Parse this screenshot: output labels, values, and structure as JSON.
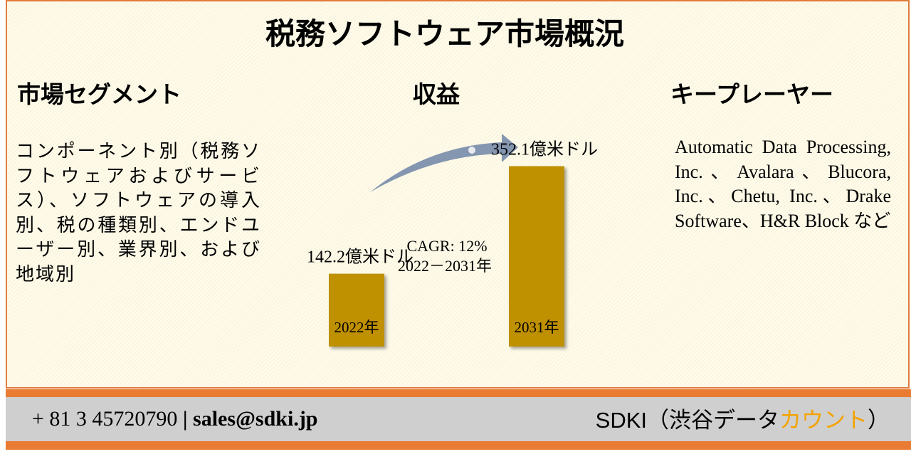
{
  "title": "税務ソフトウェア市場概況",
  "segments": {
    "heading": "市場セグメント",
    "text": "コンポーネント別（税務ソフトウェアおよびサービス）、ソフトウェアの導入別、税の種類別、エンドユーザー別、業界別、および地域別"
  },
  "revenue": {
    "heading": "収益",
    "categories": [
      "2022年",
      "2031年"
    ],
    "values": [
      142.2,
      352.1
    ],
    "value_labels": [
      "142.2億米ドル",
      "352.1億米ドル"
    ],
    "color": "#bf9000",
    "cagr": "CAGR: 12%",
    "period": "2022－2031年"
  },
  "players": {
    "heading": "キープレーヤー",
    "text": "Automatic Data Processing, Inc.、Avalara、Blucora, Inc.、Chetu, Inc.、Drake Software、H&R Block など"
  },
  "footer": {
    "phone": "+ 81 3 45720790",
    "separator": "|",
    "email": "sales@sdki.jp",
    "brand": "SDKI（渋谷データ",
    "brand_highlight": "カウント",
    "brand_end": "）"
  }
}
